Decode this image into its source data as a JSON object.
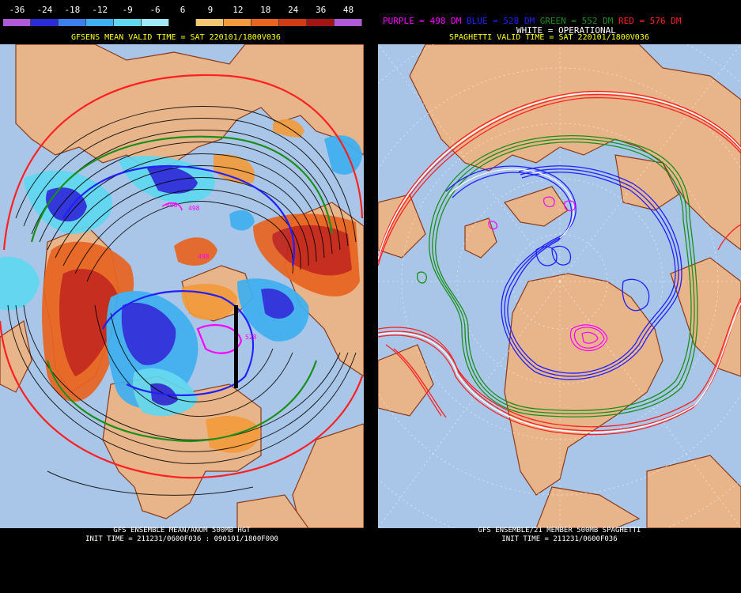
{
  "left": {
    "colorbar_ticks": [
      "-36",
      "-24",
      "-18",
      "-12",
      "-9",
      "-6",
      "6",
      "9",
      "12",
      "18",
      "24",
      "36",
      "48"
    ],
    "colorbar_colors": [
      "#b15ad8",
      "#2b2bd8",
      "#3c80f0",
      "#3fb0f0",
      "#5fd8f0",
      "#9fe8f8",
      "#000000",
      "#f4c873",
      "#f39b3c",
      "#e86420",
      "#d23c14",
      "#a51414",
      "#b15ad8"
    ],
    "title": "GFSENS MEAN VALID TIME = SAT 220101/1800V036",
    "footer_line1": "GFS ENSEMBLE MEAN/ANOM 500MB HGT",
    "footer_line2": "INIT TIME = 211231/0600F036 : 090101/1800F000",
    "labels": [
      "498",
      "498",
      "498",
      "528"
    ]
  },
  "right": {
    "legend": {
      "purple": "PURPLE = 498 DM",
      "blue": "BLUE = 528 DM",
      "green": "GREEN = 552 DM",
      "red": "RED = 576 DM"
    },
    "legend_colors": {
      "purple": "#ff00ff",
      "blue": "#2020ff",
      "green": "#1a8f1a",
      "red": "#ff2020",
      "white": "#ffffff"
    },
    "operational": "WHITE = OPERATIONAL",
    "title": "SPAGHETTI VALID TIME = SAT 220101/1800V036",
    "footer_line1": "GFS ENSEMBLE/21 MEMBER 500MB SPAGHETTI",
    "footer_line2": "INIT TIME = 211231/0600F036"
  },
  "colors": {
    "ocean": "#a9c6e8",
    "land": "#e8b48a",
    "coast": "#8b3a1a"
  }
}
